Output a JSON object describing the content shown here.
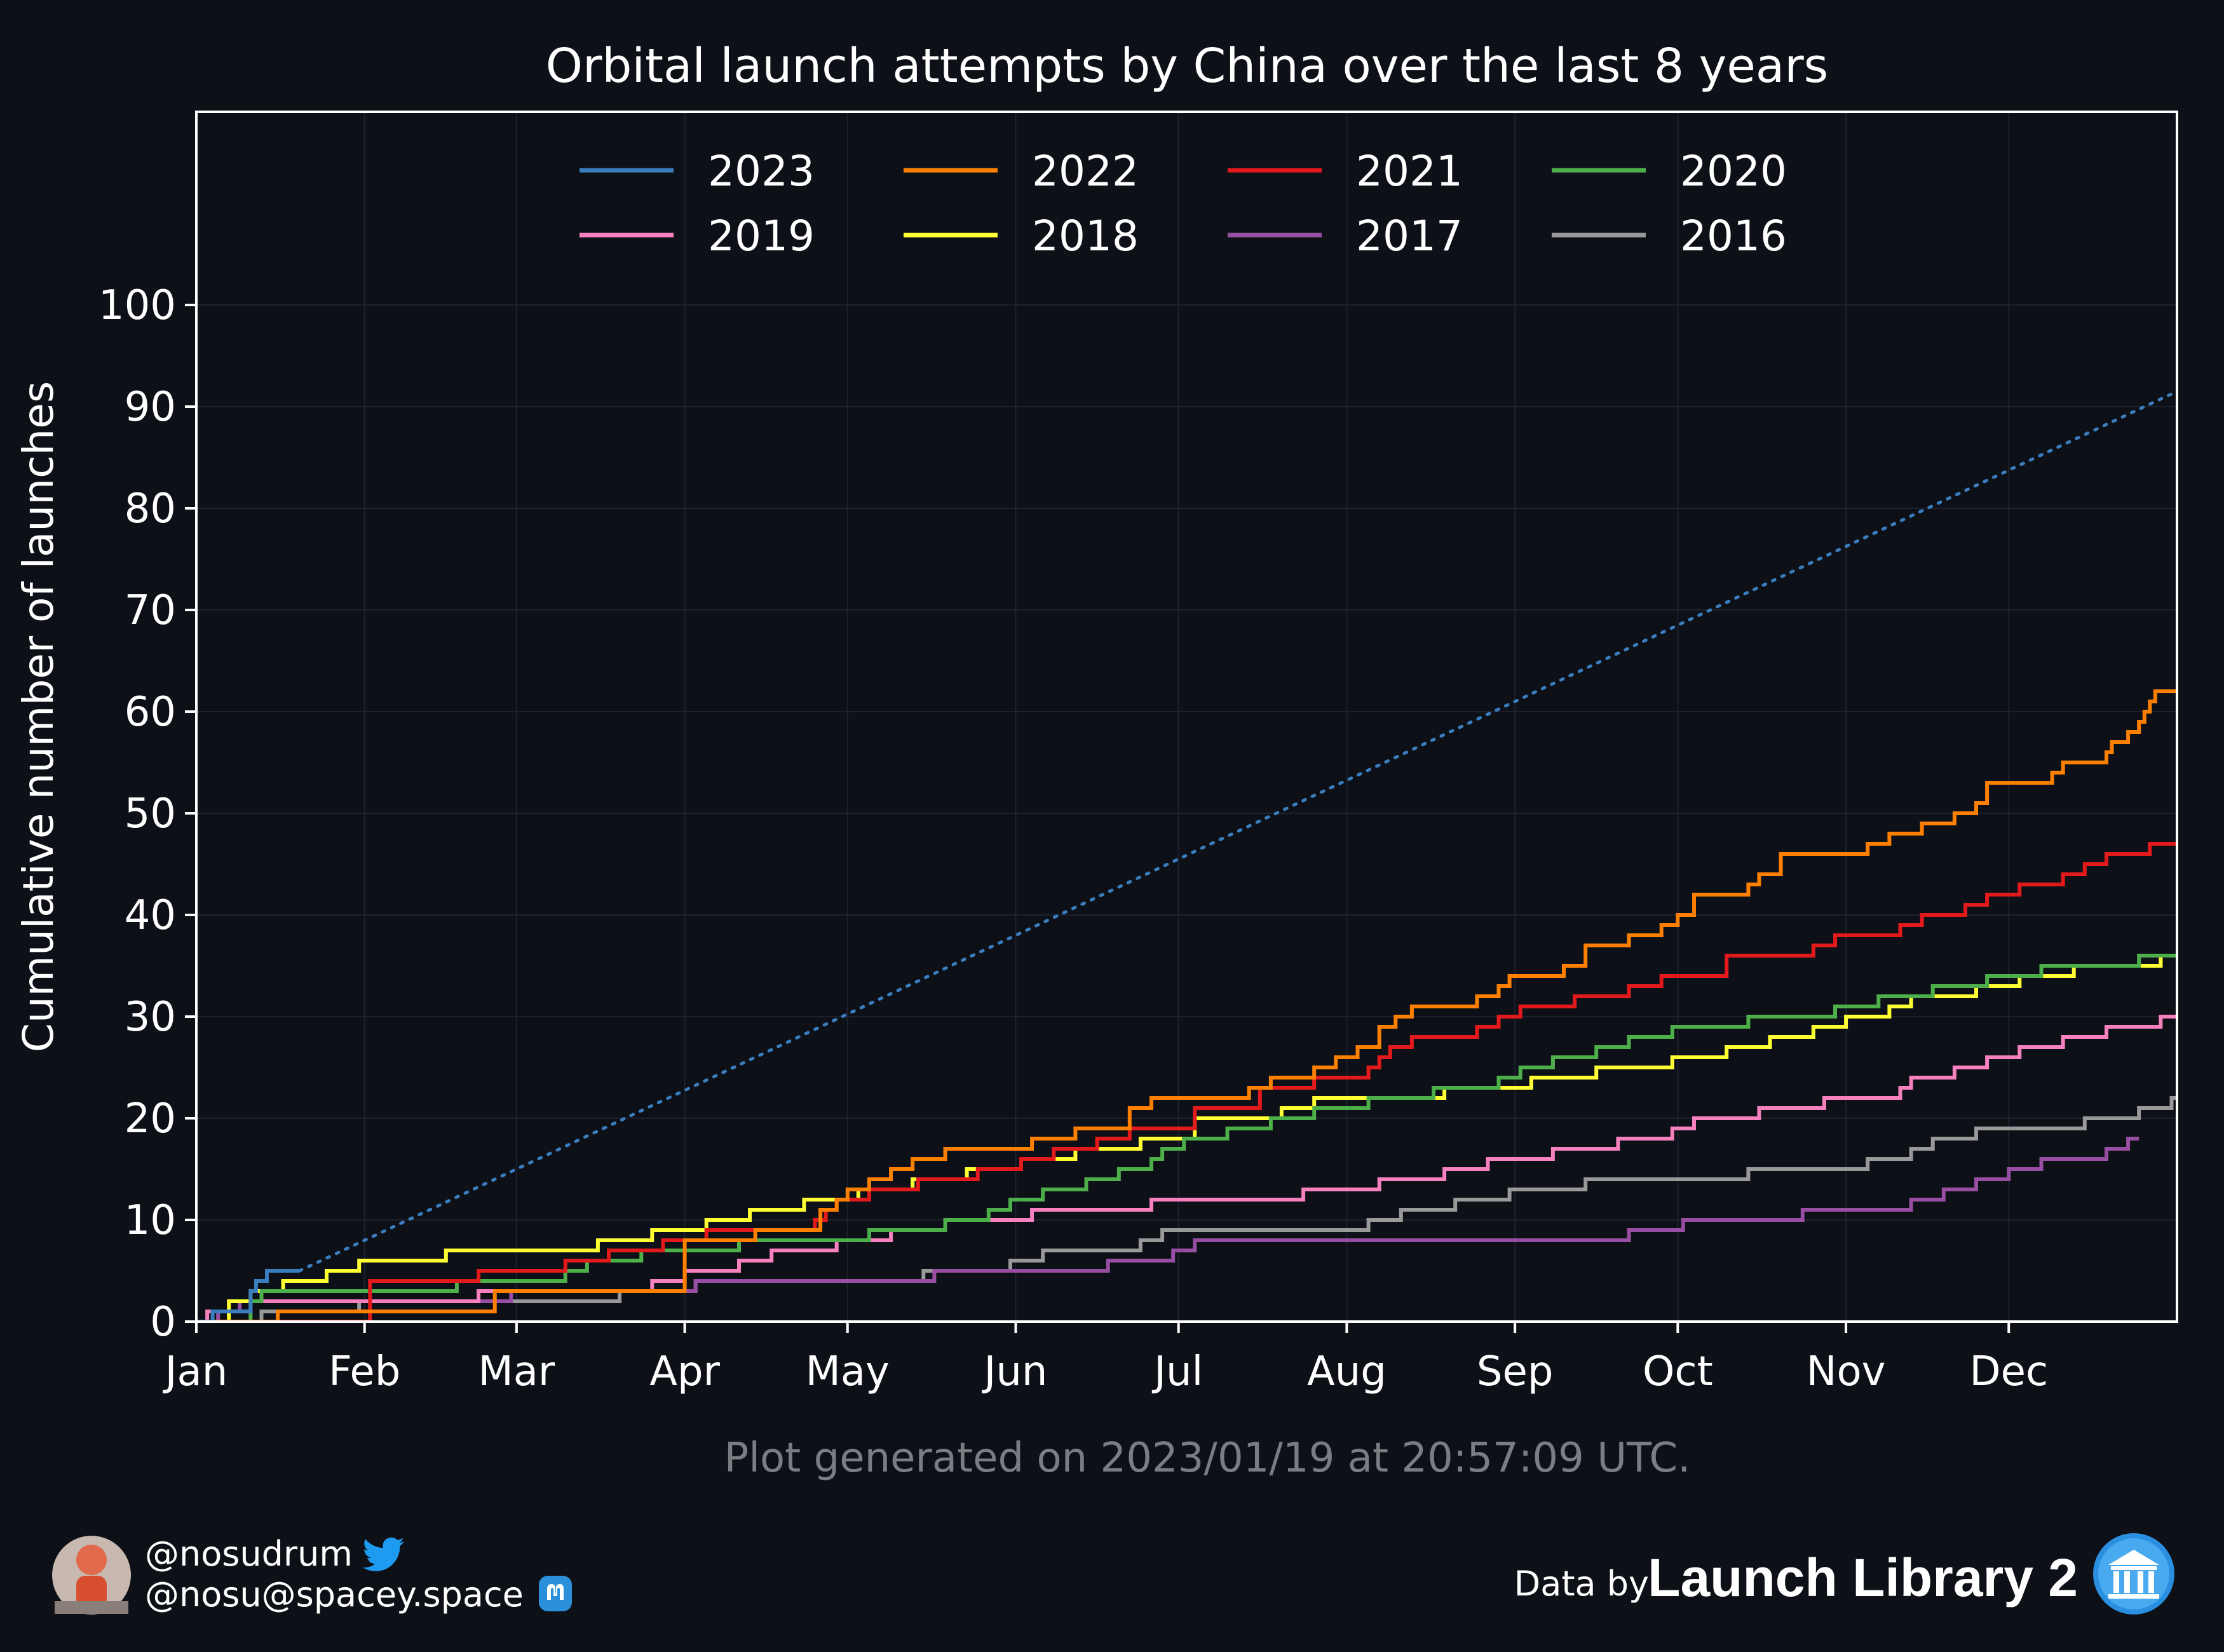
{
  "chart_data": {
    "type": "line",
    "title": "Orbital launch attempts by China over the last 8 years",
    "ylabel": "Cumulative number of launches",
    "xlabel": "",
    "xlim_day": [
      0,
      365
    ],
    "ylim": [
      0,
      119
    ],
    "yticks": [
      0,
      10,
      20,
      30,
      40,
      50,
      60,
      70,
      80,
      90,
      100
    ],
    "months": [
      {
        "label": "Jan",
        "day": 0
      },
      {
        "label": "Feb",
        "day": 31
      },
      {
        "label": "Mar",
        "day": 59
      },
      {
        "label": "Apr",
        "day": 90
      },
      {
        "label": "May",
        "day": 120
      },
      {
        "label": "Jun",
        "day": 151
      },
      {
        "label": "Jul",
        "day": 181
      },
      {
        "label": "Aug",
        "day": 212
      },
      {
        "label": "Sep",
        "day": 243
      },
      {
        "label": "Oct",
        "day": 273
      },
      {
        "label": "Nov",
        "day": 304
      },
      {
        "label": "Dec",
        "day": 334
      }
    ],
    "grid": true,
    "legend_position": "top-center",
    "series": [
      {
        "name": "2023",
        "color": "#3a7ebf",
        "points": [
          [
            0,
            0
          ],
          [
            3,
            1
          ],
          [
            10,
            3
          ],
          [
            11,
            4
          ],
          [
            13,
            5
          ],
          [
            19,
            5
          ]
        ],
        "projection": {
          "from": [
            19,
            5
          ],
          "to": [
            365,
            91.5
          ],
          "style": "dotted"
        }
      },
      {
        "name": "2022",
        "color": "#ff8000",
        "points": [
          [
            0,
            0
          ],
          [
            15,
            1
          ],
          [
            55,
            3
          ],
          [
            90,
            6
          ],
          [
            90,
            8
          ],
          [
            103,
            9
          ],
          [
            115,
            11
          ],
          [
            118,
            12
          ],
          [
            120,
            13
          ],
          [
            124,
            14
          ],
          [
            128,
            15
          ],
          [
            132,
            16
          ],
          [
            138,
            17
          ],
          [
            148,
            17
          ],
          [
            154,
            18
          ],
          [
            162,
            19
          ],
          [
            172,
            20
          ],
          [
            172,
            21
          ],
          [
            176,
            22
          ],
          [
            186,
            22
          ],
          [
            194,
            23
          ],
          [
            198,
            24
          ],
          [
            206,
            25
          ],
          [
            210,
            26
          ],
          [
            214,
            27
          ],
          [
            218,
            29
          ],
          [
            221,
            30
          ],
          [
            224,
            31
          ],
          [
            236,
            32
          ],
          [
            240,
            33
          ],
          [
            242,
            34
          ],
          [
            252,
            35
          ],
          [
            256,
            37
          ],
          [
            264,
            38
          ],
          [
            270,
            39
          ],
          [
            273,
            40
          ],
          [
            276,
            42
          ],
          [
            286,
            43
          ],
          [
            288,
            44
          ],
          [
            292,
            46
          ],
          [
            308,
            47
          ],
          [
            312,
            48
          ],
          [
            318,
            49
          ],
          [
            324,
            50
          ],
          [
            328,
            51
          ],
          [
            330,
            53
          ],
          [
            342,
            54
          ],
          [
            344,
            55
          ],
          [
            352,
            56
          ],
          [
            353,
            57
          ],
          [
            356,
            58
          ],
          [
            358,
            59
          ],
          [
            359,
            60
          ],
          [
            360,
            61
          ],
          [
            361,
            62
          ],
          [
            368,
            62
          ],
          [
            370,
            63
          ],
          [
            372,
            64
          ],
          [
            375,
            64
          ]
        ]
      },
      {
        "name": "2021",
        "color": "#e31a1c",
        "points": [
          [
            0,
            0
          ],
          [
            32,
            4
          ],
          [
            52,
            5
          ],
          [
            68,
            6
          ],
          [
            76,
            7
          ],
          [
            86,
            8
          ],
          [
            94,
            9
          ],
          [
            106,
            9
          ],
          [
            114,
            10
          ],
          [
            116,
            11
          ],
          [
            118,
            12
          ],
          [
            124,
            13
          ],
          [
            133,
            14
          ],
          [
            144,
            15
          ],
          [
            152,
            16
          ],
          [
            158,
            17
          ],
          [
            166,
            18
          ],
          [
            172,
            19
          ],
          [
            184,
            21
          ],
          [
            196,
            23
          ],
          [
            202,
            23
          ],
          [
            206,
            24
          ],
          [
            216,
            25
          ],
          [
            218,
            26
          ],
          [
            220,
            27
          ],
          [
            224,
            28
          ],
          [
            236,
            29
          ],
          [
            240,
            30
          ],
          [
            244,
            31
          ],
          [
            254,
            32
          ],
          [
            264,
            33
          ],
          [
            270,
            34
          ],
          [
            282,
            36
          ],
          [
            298,
            37
          ],
          [
            302,
            38
          ],
          [
            314,
            39
          ],
          [
            318,
            40
          ],
          [
            326,
            41
          ],
          [
            330,
            42
          ],
          [
            336,
            43
          ],
          [
            344,
            44
          ],
          [
            348,
            45
          ],
          [
            352,
            46
          ],
          [
            360,
            47
          ],
          [
            372,
            48
          ],
          [
            376,
            49
          ],
          [
            382,
            50
          ],
          [
            386,
            51
          ],
          [
            390,
            52
          ],
          [
            394,
            53
          ],
          [
            396,
            54
          ],
          [
            398,
            55
          ],
          [
            400,
            55
          ]
        ]
      },
      {
        "name": "2020",
        "color": "#4daf4a",
        "points": [
          [
            0,
            0
          ],
          [
            10,
            2
          ],
          [
            12,
            3
          ],
          [
            32,
            3
          ],
          [
            46,
            3
          ],
          [
            48,
            4
          ],
          [
            56,
            4
          ],
          [
            68,
            5
          ],
          [
            72,
            6
          ],
          [
            82,
            7
          ],
          [
            96,
            7
          ],
          [
            100,
            8
          ],
          [
            114,
            8
          ],
          [
            124,
            9
          ],
          [
            138,
            10
          ],
          [
            146,
            11
          ],
          [
            150,
            12
          ],
          [
            156,
            13
          ],
          [
            164,
            14
          ],
          [
            170,
            15
          ],
          [
            176,
            16
          ],
          [
            178,
            17
          ],
          [
            182,
            18
          ],
          [
            190,
            19
          ],
          [
            198,
            20
          ],
          [
            206,
            21
          ],
          [
            216,
            22
          ],
          [
            228,
            23
          ],
          [
            240,
            24
          ],
          [
            244,
            25
          ],
          [
            250,
            26
          ],
          [
            258,
            27
          ],
          [
            264,
            28
          ],
          [
            272,
            29
          ],
          [
            286,
            30
          ],
          [
            302,
            31
          ],
          [
            310,
            32
          ],
          [
            320,
            33
          ],
          [
            330,
            34
          ],
          [
            340,
            35
          ],
          [
            358,
            36
          ],
          [
            370,
            37
          ],
          [
            376,
            38
          ],
          [
            378,
            39
          ],
          [
            380,
            39
          ]
        ]
      },
      {
        "name": "2019",
        "color": "#f781bf",
        "points": [
          [
            0,
            0
          ],
          [
            2,
            1
          ],
          [
            10,
            2
          ],
          [
            24,
            2
          ],
          [
            42,
            2
          ],
          [
            52,
            3
          ],
          [
            84,
            4
          ],
          [
            90,
            5
          ],
          [
            100,
            6
          ],
          [
            106,
            7
          ],
          [
            118,
            8
          ],
          [
            128,
            9
          ],
          [
            138,
            10
          ],
          [
            154,
            11
          ],
          [
            176,
            12
          ],
          [
            204,
            13
          ],
          [
            218,
            14
          ],
          [
            230,
            15
          ],
          [
            238,
            16
          ],
          [
            250,
            17
          ],
          [
            262,
            18
          ],
          [
            272,
            19
          ],
          [
            276,
            20
          ],
          [
            288,
            21
          ],
          [
            300,
            22
          ],
          [
            314,
            23
          ],
          [
            316,
            24
          ],
          [
            324,
            25
          ],
          [
            330,
            26
          ],
          [
            336,
            27
          ],
          [
            344,
            28
          ],
          [
            352,
            29
          ],
          [
            362,
            30
          ],
          [
            372,
            31
          ],
          [
            378,
            32
          ],
          [
            380,
            33
          ],
          [
            386,
            34
          ],
          [
            390,
            34
          ]
        ]
      },
      {
        "name": "2018",
        "color": "#ffff33",
        "points": [
          [
            0,
            0
          ],
          [
            6,
            2
          ],
          [
            10,
            3
          ],
          [
            16,
            4
          ],
          [
            24,
            5
          ],
          [
            30,
            6
          ],
          [
            46,
            7
          ],
          [
            74,
            8
          ],
          [
            84,
            9
          ],
          [
            94,
            10
          ],
          [
            102,
            11
          ],
          [
            112,
            12
          ],
          [
            122,
            13
          ],
          [
            132,
            14
          ],
          [
            142,
            15
          ],
          [
            152,
            16
          ],
          [
            162,
            17
          ],
          [
            174,
            18
          ],
          [
            184,
            20
          ],
          [
            200,
            21
          ],
          [
            206,
            22
          ],
          [
            226,
            22
          ],
          [
            230,
            23
          ],
          [
            246,
            24
          ],
          [
            258,
            25
          ],
          [
            272,
            26
          ],
          [
            282,
            27
          ],
          [
            290,
            28
          ],
          [
            298,
            29
          ],
          [
            304,
            30
          ],
          [
            312,
            31
          ],
          [
            316,
            32
          ],
          [
            328,
            33
          ],
          [
            336,
            34
          ],
          [
            346,
            35
          ],
          [
            362,
            36
          ],
          [
            372,
            37
          ],
          [
            376,
            38
          ],
          [
            378,
            39
          ],
          [
            380,
            39
          ]
        ]
      },
      {
        "name": "2017",
        "color": "#984ea3",
        "points": [
          [
            0,
            0
          ],
          [
            4,
            1
          ],
          [
            8,
            2
          ],
          [
            18,
            2
          ],
          [
            58,
            3
          ],
          [
            78,
            3
          ],
          [
            92,
            4
          ],
          [
            136,
            5
          ],
          [
            160,
            5
          ],
          [
            168,
            6
          ],
          [
            180,
            7
          ],
          [
            184,
            8
          ],
          [
            220,
            8
          ],
          [
            264,
            9
          ],
          [
            274,
            10
          ],
          [
            290,
            10
          ],
          [
            296,
            11
          ],
          [
            310,
            11
          ],
          [
            316,
            12
          ],
          [
            322,
            13
          ],
          [
            328,
            14
          ],
          [
            334,
            15
          ],
          [
            340,
            16
          ],
          [
            352,
            17
          ],
          [
            356,
            18
          ],
          [
            358,
            18
          ]
        ]
      },
      {
        "name": "2016",
        "color": "#999999",
        "points": [
          [
            0,
            0
          ],
          [
            12,
            1
          ],
          [
            30,
            2
          ],
          [
            78,
            3
          ],
          [
            92,
            4
          ],
          [
            134,
            5
          ],
          [
            150,
            6
          ],
          [
            156,
            7
          ],
          [
            172,
            7
          ],
          [
            174,
            8
          ],
          [
            178,
            9
          ],
          [
            198,
            9
          ],
          [
            216,
            10
          ],
          [
            222,
            11
          ],
          [
            232,
            12
          ],
          [
            242,
            13
          ],
          [
            252,
            13
          ],
          [
            256,
            14
          ],
          [
            272,
            14
          ],
          [
            284,
            14
          ],
          [
            286,
            15
          ],
          [
            300,
            15
          ],
          [
            308,
            16
          ],
          [
            316,
            17
          ],
          [
            320,
            18
          ],
          [
            328,
            19
          ],
          [
            340,
            19
          ],
          [
            348,
            20
          ],
          [
            358,
            21
          ],
          [
            364,
            22
          ],
          [
            366,
            22
          ]
        ]
      }
    ]
  },
  "footer": {
    "generated": "Plot generated on 2023/01/19 at 20:57:09 UTC.",
    "twitter_handle": "@nosudrum",
    "mastodon_handle": "@nosu@spacey.space",
    "data_by": "Data by",
    "source": "Launch Library 2"
  },
  "colors": {
    "background": "#0d1017",
    "axes": "#ffffff",
    "grid": "#1e2230",
    "twitter": "#1d9bf0",
    "mastodon": "#2b90d9"
  },
  "icons": [
    "avatar",
    "twitter-bird-icon",
    "mastodon-icon",
    "library-building-icon"
  ]
}
